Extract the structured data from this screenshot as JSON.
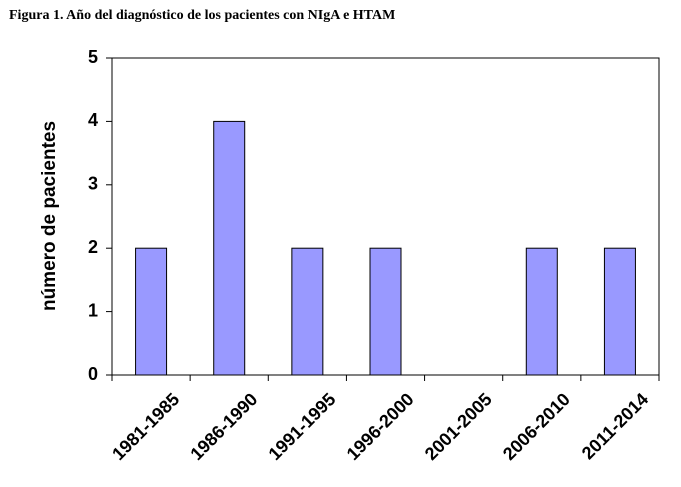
{
  "chart_data": {
    "type": "bar",
    "title": "Figura 1. Año del diagnóstico  de los pacientes con NIgA e HTAM",
    "ylabel": "número de pacientes",
    "xlabel": "",
    "categories": [
      "1981-1985",
      "1986-1990",
      "1991-1995",
      "1996-2000",
      "2001-2005",
      "2006-2010",
      "2011-2014"
    ],
    "values": [
      2,
      4,
      2,
      2,
      0,
      2,
      2
    ],
    "ylim": [
      0,
      5
    ],
    "yticks": [
      0,
      1,
      2,
      3,
      4,
      5
    ],
    "grid": false,
    "legend": "none",
    "colors": {
      "bar_fill": "#9999ff",
      "bar_stroke": "#000000",
      "axis": "#000000"
    }
  }
}
